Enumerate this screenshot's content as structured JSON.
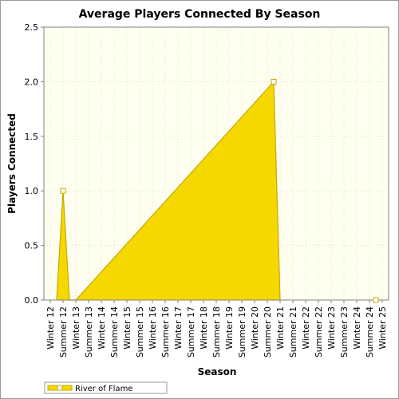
{
  "chart_data": {
    "type": "area",
    "title": "Average Players Connected By Season",
    "xlabel": "Season",
    "ylabel": "Players Connected",
    "ylim": [
      0,
      2.5
    ],
    "yticks": [
      "0.0",
      "0.5",
      "1.0",
      "1.5",
      "2.0",
      "2.5"
    ],
    "categories": [
      "Winter 12",
      "Summer 12",
      "Winter 13",
      "Summer 13",
      "Winter 14",
      "Summer 14",
      "Winter 15",
      "Summer 15",
      "Winter 16",
      "Summer 16",
      "Winter 17",
      "Summer 17",
      "Winter 18",
      "Summer 18",
      "Winter 19",
      "Summer 19",
      "Winter 20",
      "Summer 20",
      "Winter 21",
      "Summer 21",
      "Winter 22",
      "Summer 22",
      "Winter 23",
      "Summer 23",
      "Winter 24",
      "Summer 24",
      "Winter 25"
    ],
    "series": [
      {
        "name": "River of Flame",
        "points": [
          {
            "x": 0.5,
            "y": 0
          },
          {
            "x": 1.0,
            "y": 1.0
          },
          {
            "x": 1.5,
            "y": 0
          },
          {
            "x": 2.0,
            "y": 0
          },
          {
            "x": 17.5,
            "y": 2.0
          },
          {
            "x": 18.0,
            "y": 0
          }
        ],
        "markers": [
          {
            "x": 1.0,
            "y": 1.0
          },
          {
            "x": 17.5,
            "y": 2.0
          },
          {
            "x": 25.5,
            "y": 0
          }
        ],
        "color": "#f5d800",
        "edge_color": "#c8a800"
      }
    ],
    "grid": true,
    "background": "#fffff0",
    "legend": "bottom-left"
  }
}
